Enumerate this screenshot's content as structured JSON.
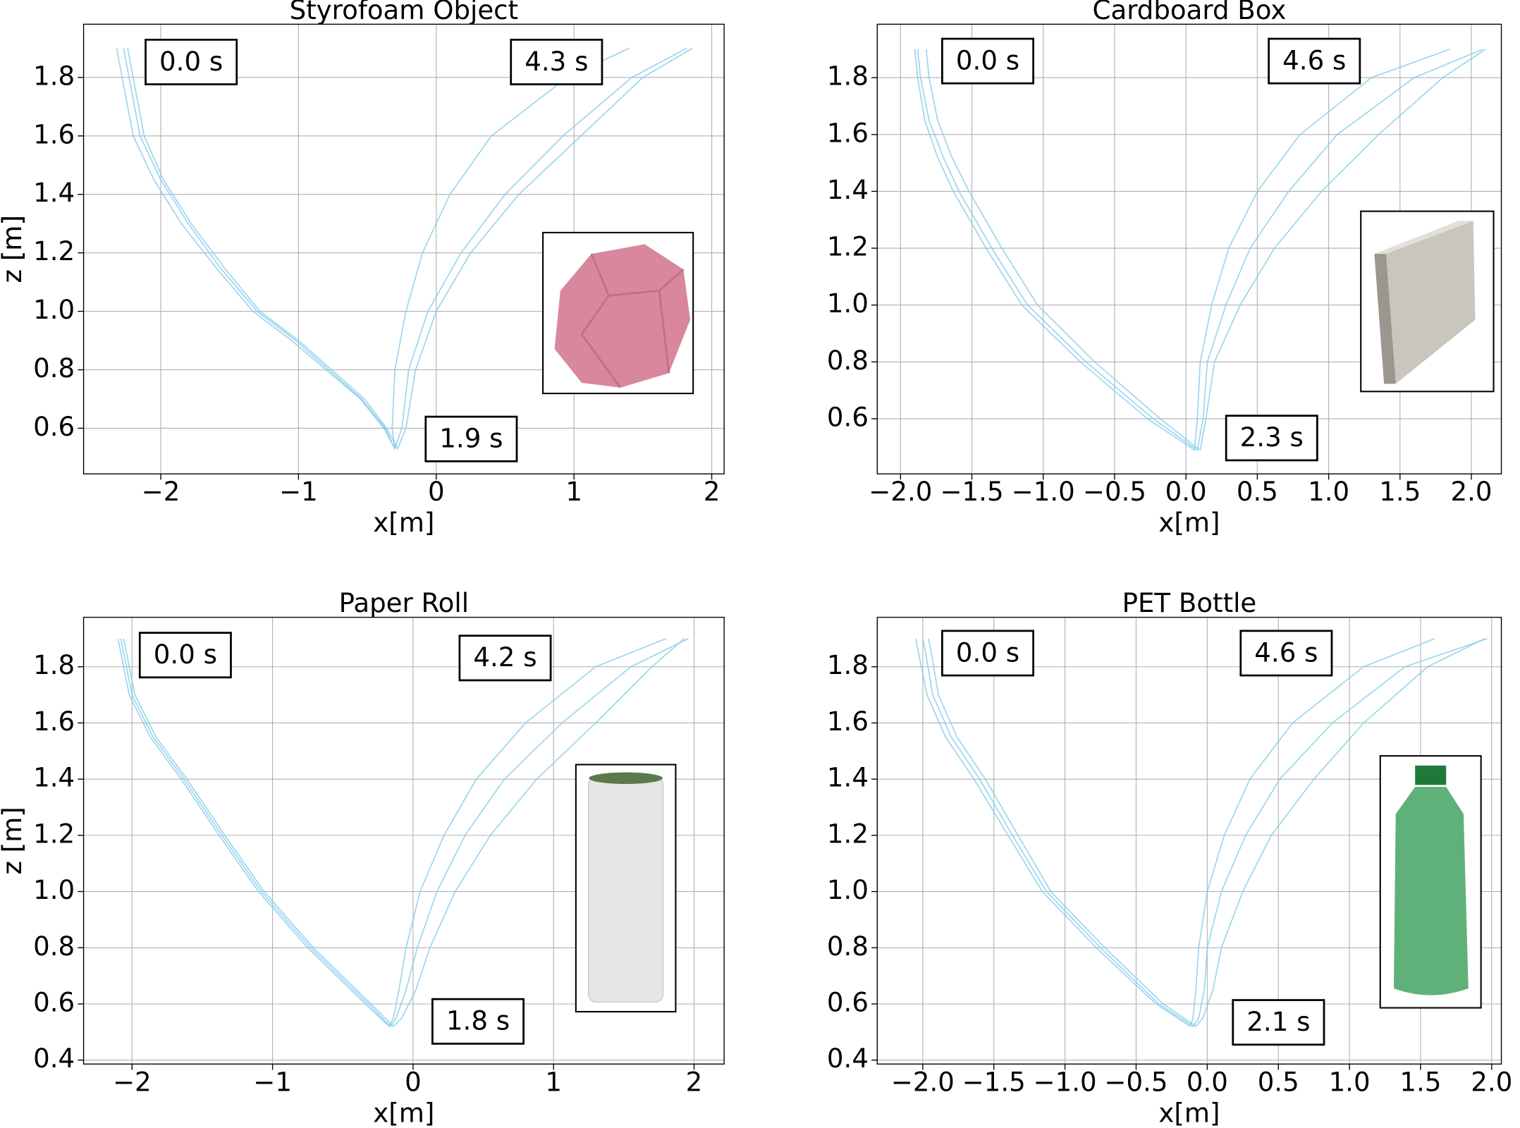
{
  "chart_data": [
    {
      "type": "line",
      "title": "Styrofoam Object",
      "xlabel": "x[m]",
      "ylabel": "z [m]",
      "xlim": [
        -2.56,
        2.09
      ],
      "ylim": [
        0.444,
        1.982
      ],
      "xticks": [
        {
          "value": -2,
          "label": "−2"
        },
        {
          "value": -1,
          "label": "−1"
        },
        0,
        1,
        2
      ],
      "yticks": [
        0.6,
        0.8,
        {
          "value": 1.0,
          "label": "1.0"
        },
        1.2,
        1.4,
        1.6,
        1.8
      ],
      "grid": true,
      "annotations": [
        "0.0 s",
        "4.3 s",
        "1.9 s"
      ],
      "series": [
        {
          "color": "#87ceeb",
          "x": [
            -2.32,
            -2.28,
            -2.2,
            -2.05,
            -1.85,
            -1.6,
            -1.33,
            -1.05,
            -0.8,
            -0.55,
            -0.38,
            -0.3,
            -0.25,
            -0.2,
            -0.06,
            0.18,
            0.5,
            0.92,
            1.42,
            1.82
          ],
          "values": [
            1.9,
            1.8,
            1.6,
            1.45,
            1.3,
            1.15,
            1.0,
            0.9,
            0.8,
            0.7,
            0.6,
            0.53,
            0.6,
            0.8,
            1.0,
            1.2,
            1.4,
            1.6,
            1.8,
            1.9
          ]
        },
        {
          "color": "#87ceeb",
          "x": [
            -2.24,
            -2.2,
            -2.12,
            -1.98,
            -1.78,
            -1.54,
            -1.28,
            -1.0,
            -0.76,
            -0.52,
            -0.36,
            -0.28,
            -0.22,
            -0.15,
            0.0,
            0.25,
            0.6,
            1.05,
            1.5,
            1.86
          ],
          "values": [
            1.9,
            1.8,
            1.6,
            1.45,
            1.3,
            1.15,
            1.0,
            0.9,
            0.8,
            0.7,
            0.6,
            0.53,
            0.6,
            0.8,
            1.0,
            1.2,
            1.4,
            1.6,
            1.8,
            1.9
          ]
        },
        {
          "color": "#87ceeb",
          "x": [
            -2.27,
            -2.23,
            -2.15,
            -2.0,
            -1.8,
            -1.57,
            -1.3,
            -1.02,
            -0.78,
            -0.54,
            -0.37,
            -0.3,
            -0.32,
            -0.3,
            -0.22,
            -0.1,
            0.1,
            0.4,
            0.95,
            1.4
          ],
          "values": [
            1.9,
            1.8,
            1.6,
            1.45,
            1.3,
            1.15,
            1.0,
            0.9,
            0.8,
            0.7,
            0.6,
            0.53,
            0.6,
            0.8,
            1.0,
            1.2,
            1.4,
            1.6,
            1.8,
            1.9
          ]
        }
      ]
    },
    {
      "type": "line",
      "title": "Cardboard Box",
      "xlabel": "x[m]",
      "ylabel": "z [m]",
      "xlim": [
        -2.163,
        2.21
      ],
      "ylim": [
        0.406,
        1.988
      ],
      "xticks": [
        {
          "value": -2.0,
          "label": "−2.0"
        },
        {
          "value": -1.5,
          "label": "−1.5"
        },
        {
          "value": -1.0,
          "label": "−1.0"
        },
        {
          "value": -0.5,
          "label": "−0.5"
        },
        {
          "value": 0.0,
          "label": "0.0"
        },
        0.5,
        {
          "value": 1.0,
          "label": "1.0"
        },
        1.5,
        {
          "value": 2.0,
          "label": "2.0"
        }
      ],
      "yticks": [
        0.6,
        0.8,
        {
          "value": 1.0,
          "label": "1.0"
        },
        1.2,
        1.4,
        1.6,
        1.8
      ],
      "grid": true,
      "annotations": [
        "0.0 s",
        "4.6 s",
        "2.3 s"
      ],
      "series": [
        {
          "color": "#87ceeb",
          "x": [
            -1.88,
            -1.86,
            -1.8,
            -1.7,
            -1.59,
            -1.36,
            -1.11,
            -0.7,
            -0.23,
            0.05,
            0.08,
            0.12,
            0.15,
            0.28,
            0.45,
            0.72,
            1.06,
            1.6,
            2.08
          ],
          "values": [
            1.9,
            1.8,
            1.65,
            1.52,
            1.4,
            1.2,
            1.0,
            0.8,
            0.6,
            0.5,
            0.49,
            0.6,
            0.8,
            1.0,
            1.2,
            1.4,
            1.6,
            1.8,
            1.9
          ]
        },
        {
          "color": "#87ceeb",
          "x": [
            -1.82,
            -1.8,
            -1.74,
            -1.64,
            -1.52,
            -1.29,
            -1.04,
            -0.64,
            -0.18,
            0.07,
            0.1,
            0.14,
            0.2,
            0.38,
            0.62,
            0.95,
            1.35,
            1.8,
            2.1
          ],
          "values": [
            1.9,
            1.8,
            1.65,
            1.52,
            1.4,
            1.2,
            1.0,
            0.8,
            0.6,
            0.5,
            0.49,
            0.6,
            0.8,
            1.0,
            1.2,
            1.4,
            1.6,
            1.8,
            1.9
          ]
        },
        {
          "color": "#87ceeb",
          "x": [
            -1.9,
            -1.88,
            -1.83,
            -1.74,
            -1.63,
            -1.4,
            -1.15,
            -0.74,
            -0.27,
            0.03,
            0.06,
            0.08,
            0.1,
            0.18,
            0.3,
            0.5,
            0.8,
            1.3,
            1.85
          ],
          "values": [
            1.9,
            1.8,
            1.65,
            1.52,
            1.4,
            1.2,
            1.0,
            0.8,
            0.6,
            0.5,
            0.49,
            0.6,
            0.8,
            1.0,
            1.2,
            1.4,
            1.6,
            1.8,
            1.9
          ]
        }
      ]
    },
    {
      "type": "line",
      "title": "Paper Roll",
      "xlabel": "x[m]",
      "ylabel": "z [m]",
      "xlim": [
        -2.345,
        2.214
      ],
      "ylim": [
        0.386,
        1.976
      ],
      "xticks": [
        {
          "value": -2,
          "label": "−2"
        },
        {
          "value": -1,
          "label": "−1"
        },
        0,
        1,
        2
      ],
      "yticks": [
        0.4,
        0.6,
        0.8,
        {
          "value": 1.0,
          "label": "1.0"
        },
        1.2,
        1.4,
        1.6,
        1.8
      ],
      "grid": true,
      "annotations": [
        "0.0 s",
        "4.2 s",
        "1.8 s"
      ],
      "series": [
        {
          "color": "#87ceeb",
          "x": [
            -2.08,
            -2.06,
            -2.0,
            -1.85,
            -1.63,
            -1.36,
            -1.08,
            -0.73,
            -0.32,
            -0.16,
            -0.12,
            -0.05,
            0.03,
            0.17,
            0.37,
            0.65,
            1.06,
            1.55,
            1.96
          ],
          "values": [
            1.9,
            1.85,
            1.7,
            1.55,
            1.4,
            1.2,
            1.0,
            0.8,
            0.6,
            0.52,
            0.55,
            0.65,
            0.8,
            1.0,
            1.2,
            1.4,
            1.6,
            1.8,
            1.9
          ]
        },
        {
          "color": "#87ceeb",
          "x": [
            -2.1,
            -2.08,
            -2.02,
            -1.87,
            -1.65,
            -1.38,
            -1.1,
            -0.75,
            -0.34,
            -0.17,
            -0.14,
            -0.1,
            -0.05,
            0.05,
            0.22,
            0.45,
            0.8,
            1.3,
            1.8
          ],
          "values": [
            1.9,
            1.85,
            1.7,
            1.55,
            1.4,
            1.2,
            1.0,
            0.8,
            0.6,
            0.52,
            0.55,
            0.65,
            0.8,
            1.0,
            1.2,
            1.4,
            1.6,
            1.8,
            1.9
          ]
        },
        {
          "color": "#87ceeb",
          "x": [
            -2.06,
            -2.04,
            -1.98,
            -1.83,
            -1.61,
            -1.34,
            -1.06,
            -0.71,
            -0.3,
            -0.14,
            -0.08,
            0.02,
            0.12,
            0.3,
            0.55,
            0.88,
            1.3,
            1.7,
            1.93
          ],
          "values": [
            1.9,
            1.85,
            1.7,
            1.55,
            1.4,
            1.2,
            1.0,
            0.8,
            0.6,
            0.52,
            0.55,
            0.65,
            0.8,
            1.0,
            1.2,
            1.4,
            1.6,
            1.8,
            1.9
          ]
        }
      ]
    },
    {
      "type": "line",
      "title": "PET Bottle",
      "xlabel": "x[m]",
      "ylabel": "z [m]",
      "xlim": [
        -2.32,
        2.068
      ],
      "ylim": [
        0.386,
        1.976
      ],
      "xticks": [
        {
          "value": -2.0,
          "label": "−2.0"
        },
        {
          "value": -1.5,
          "label": "−1.5"
        },
        {
          "value": -1.0,
          "label": "−1.0"
        },
        {
          "value": -0.5,
          "label": "−0.5"
        },
        {
          "value": 0.0,
          "label": "0.0"
        },
        0.5,
        {
          "value": 1.0,
          "label": "1.0"
        },
        1.5,
        {
          "value": 2.0,
          "label": "2.0"
        }
      ],
      "yticks": [
        0.4,
        0.6,
        0.8,
        {
          "value": 1.0,
          "label": "1.0"
        },
        1.2,
        1.4,
        1.6,
        1.8
      ],
      "grid": true,
      "annotations": [
        "0.0 s",
        "4.6 s",
        "2.1 s"
      ],
      "series": [
        {
          "color": "#87ceeb",
          "x": [
            -2.0,
            -1.98,
            -1.93,
            -1.8,
            -1.6,
            -1.37,
            -1.13,
            -0.75,
            -0.34,
            -0.1,
            -0.06,
            -0.02,
            0.0,
            0.1,
            0.27,
            0.51,
            0.88,
            1.39,
            1.97
          ],
          "values": [
            1.9,
            1.85,
            1.7,
            1.55,
            1.4,
            1.2,
            1.0,
            0.8,
            0.6,
            0.52,
            0.55,
            0.65,
            0.8,
            1.0,
            1.2,
            1.4,
            1.6,
            1.8,
            1.9
          ]
        },
        {
          "color": "#87ceeb",
          "x": [
            -2.05,
            -2.03,
            -1.97,
            -1.84,
            -1.64,
            -1.4,
            -1.16,
            -0.78,
            -0.36,
            -0.12,
            -0.1,
            -0.08,
            -0.06,
            0.0,
            0.12,
            0.3,
            0.6,
            1.1,
            1.6
          ],
          "values": [
            1.9,
            1.85,
            1.7,
            1.55,
            1.4,
            1.2,
            1.0,
            0.8,
            0.6,
            0.52,
            0.55,
            0.65,
            0.8,
            1.0,
            1.2,
            1.4,
            1.6,
            1.8,
            1.9
          ]
        },
        {
          "color": "#87ceeb",
          "x": [
            -1.96,
            -1.94,
            -1.89,
            -1.76,
            -1.56,
            -1.33,
            -1.1,
            -0.72,
            -0.31,
            -0.08,
            -0.03,
            0.04,
            0.1,
            0.25,
            0.45,
            0.75,
            1.1,
            1.55,
            1.95
          ],
          "values": [
            1.9,
            1.85,
            1.7,
            1.55,
            1.4,
            1.2,
            1.0,
            0.8,
            0.6,
            0.52,
            0.55,
            0.65,
            0.8,
            1.0,
            1.2,
            1.4,
            1.6,
            1.8,
            1.9
          ]
        }
      ]
    }
  ]
}
